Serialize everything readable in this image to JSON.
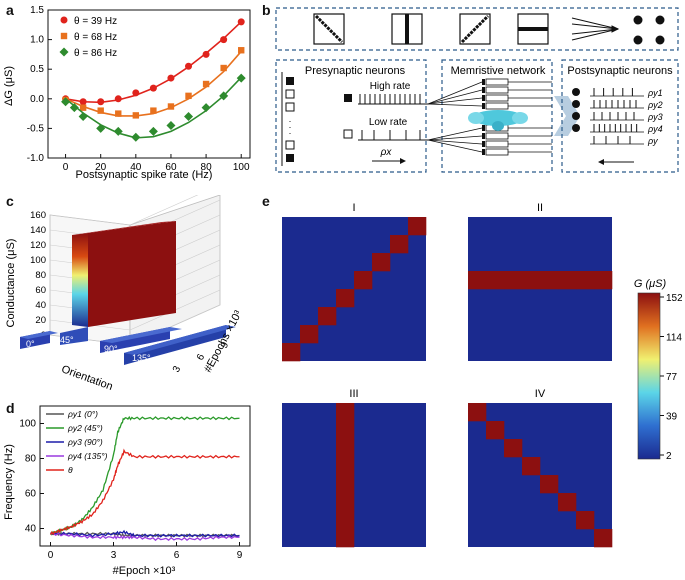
{
  "panels": {
    "a": {
      "label": "a",
      "chart_data": {
        "type": "scatter",
        "xlabel": "Postsynaptic spike rate (Hz)",
        "ylabel": "ΔG (μS)",
        "xlim": [
          -10,
          105
        ],
        "ylim": [
          -1.0,
          1.5
        ],
        "xticks": [
          0,
          20,
          40,
          60,
          80,
          100
        ],
        "yticks": [
          -1.0,
          -0.5,
          0.0,
          0.5,
          1.0,
          1.5
        ],
        "legend_position": "top-left",
        "series": [
          {
            "name": "θ = 39 Hz",
            "marker": "circle",
            "color": "#e0231c",
            "x": [
              0,
              10,
              20,
              30,
              40,
              50,
              60,
              70,
              80,
              90,
              100
            ],
            "y": [
              0.0,
              -0.05,
              -0.05,
              0.0,
              0.1,
              0.18,
              0.35,
              0.55,
              0.75,
              1.0,
              1.3
            ],
            "fit_y": [
              0.0,
              -0.05,
              -0.06,
              -0.02,
              0.06,
              0.18,
              0.34,
              0.54,
              0.77,
              1.02,
              1.3
            ]
          },
          {
            "name": "θ = 68 Hz",
            "marker": "square",
            "color": "#e8711e",
            "x": [
              0,
              10,
              20,
              30,
              40,
              50,
              60,
              70,
              80,
              90,
              100
            ],
            "y": [
              -0.02,
              -0.15,
              -0.2,
              -0.25,
              -0.28,
              -0.2,
              -0.13,
              0.05,
              0.25,
              0.52,
              0.82
            ],
            "fit_y": [
              0.0,
              -0.13,
              -0.23,
              -0.29,
              -0.29,
              -0.25,
              -0.15,
              0.0,
              0.2,
              0.46,
              0.8
            ]
          },
          {
            "name": "θ = 86 Hz",
            "marker": "diamond",
            "color": "#2e8b2e",
            "x": [
              0,
              5,
              10,
              20,
              30,
              40,
              50,
              60,
              70,
              80,
              90,
              100
            ],
            "y": [
              -0.05,
              -0.15,
              -0.3,
              -0.5,
              -0.55,
              -0.65,
              -0.55,
              -0.45,
              -0.3,
              -0.15,
              0.05,
              0.35
            ],
            "fit_y": [
              0.0,
              -0.12,
              -0.24,
              -0.44,
              -0.58,
              -0.66,
              -0.64,
              -0.55,
              -0.4,
              -0.2,
              0.05,
              0.36
            ]
          }
        ]
      }
    },
    "b": {
      "label": "b",
      "presyn_title": "Presynaptic neurons",
      "high_rate": "High rate",
      "low_rate": "Low rate",
      "rho_x": "ρx",
      "network_title": "Memristive network",
      "postsyn_title": "Postsynaptic neurons",
      "rho_labels": [
        "ρy1",
        "ρy2",
        "ρy3",
        "ρy4",
        "ρy"
      ],
      "pattern_icons": [
        "diagonal-down",
        "vertical-bar",
        "diagonal-up",
        "horizontal-bar",
        "fan-arrows",
        "four-dots"
      ]
    },
    "c": {
      "label": "c",
      "chart_data": {
        "type": "bar",
        "zlabel": "Conductance (μS)",
        "xlabel": "Orientation",
        "ylabel": "#Epochs ×10³",
        "zlim": [
          0,
          160
        ],
        "zticks": [
          0,
          20,
          40,
          60,
          80,
          100,
          120,
          140,
          160
        ],
        "orientation_labels": [
          "0°",
          "45°",
          "90°",
          "135°"
        ],
        "epoch_ticks": [
          "3",
          "6",
          "9"
        ],
        "series": [
          {
            "name": "45°",
            "values_over_epochs": [
              10,
              160,
              160,
              160
            ]
          },
          {
            "name": "0°",
            "values_over_epochs": [
              10,
              10,
              10,
              10
            ]
          },
          {
            "name": "90°",
            "values_over_epochs": [
              10,
              10,
              10,
              10
            ]
          },
          {
            "name": "135°",
            "values_over_epochs": [
              10,
              10,
              10,
              10
            ]
          }
        ]
      }
    },
    "d": {
      "label": "d",
      "chart_data": {
        "type": "line",
        "xlabel": "#Epoch ×10³",
        "ylabel": "Frequency (Hz)",
        "xlim": [
          -0.5,
          9.5
        ],
        "ylim": [
          30,
          110
        ],
        "xticks": [
          0,
          3,
          6,
          9
        ],
        "yticks": [
          40,
          60,
          80,
          100
        ],
        "legend_position": "top-left",
        "series": [
          {
            "name": "ρy1 (0°)",
            "color": "#555555",
            "x": [
              0,
              1,
              2,
              3,
              3.5,
              4,
              5,
              6,
              7,
              8,
              9
            ],
            "y": [
              37,
              37,
              37,
              37,
              36,
              36,
              36,
              36,
              36,
              36,
              36
            ]
          },
          {
            "name": "ρy2 (45°)",
            "color": "#2a9a2a",
            "x": [
              0,
              0.5,
              1,
              1.5,
              2,
              2.5,
              3,
              3.2,
              3.5,
              4,
              5,
              6,
              7,
              8,
              9
            ],
            "y": [
              37,
              39,
              41,
              45,
              52,
              62,
              82,
              95,
              103,
              103,
              103,
              103,
              103,
              103,
              103
            ]
          },
          {
            "name": "ρy3 (90°)",
            "color": "#1d1daa",
            "x": [
              0,
              1,
              2,
              3,
              3.5,
              4,
              5,
              6,
              7,
              8,
              9
            ],
            "y": [
              37,
              37,
              36,
              37,
              38,
              36,
              36,
              36,
              36,
              36,
              36
            ]
          },
          {
            "name": "ρy4 (135°)",
            "color": "#9a3adf",
            "x": [
              0,
              1,
              2,
              3,
              3.5,
              4,
              5,
              6,
              7,
              8,
              9
            ],
            "y": [
              37,
              36,
              35,
              35,
              35,
              35,
              34,
              34,
              34,
              35,
              35
            ]
          },
          {
            "name": "θ",
            "color": "#e0231c",
            "x": [
              0,
              0.5,
              1,
              1.5,
              2,
              2.5,
              3,
              3.2,
              3.5,
              4,
              5,
              6,
              7,
              8,
              9
            ],
            "y": [
              37,
              39,
              41,
              44,
              48,
              56,
              68,
              76,
              84,
              81,
              81,
              81,
              81,
              81,
              81
            ]
          }
        ]
      }
    },
    "e": {
      "label": "e",
      "chart_data": {
        "type": "heatmap",
        "grid_size": 8,
        "colorbar_label": "G (μS)",
        "colorbar_ticks": [
          "152",
          "114",
          "77",
          "39",
          "2"
        ],
        "low_color": "#1b2a8f",
        "high_color": "#8c1010",
        "maps": [
          {
            "name": "I",
            "pattern": "anti-diagonal"
          },
          {
            "name": "II",
            "pattern": "horizontal-row",
            "index": 3
          },
          {
            "name": "III",
            "pattern": "vertical-column",
            "index": 3
          },
          {
            "name": "IV",
            "pattern": "diagonal"
          }
        ]
      }
    }
  }
}
